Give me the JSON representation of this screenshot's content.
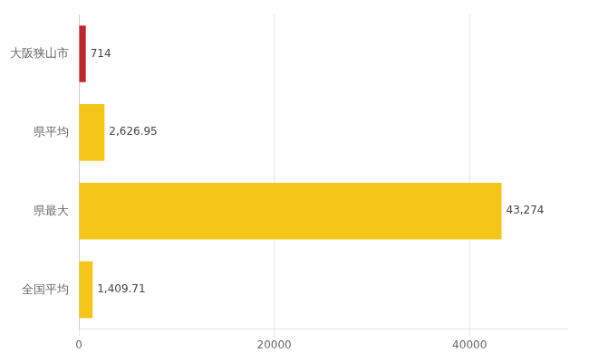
{
  "chart_data": {
    "type": "bar",
    "orientation": "horizontal",
    "categories": [
      "大阪狭山市",
      "県平均",
      "県最大",
      "全国平均"
    ],
    "values": [
      714,
      2626.95,
      43274,
      1409.71
    ],
    "value_labels": [
      "714",
      "2,626.95",
      "43,274",
      "1,409.71"
    ],
    "colors": [
      "#c0272d",
      "#f5c518",
      "#f5c518",
      "#f5c518"
    ],
    "xlim": [
      0,
      50000
    ],
    "xticks": [
      0,
      20000,
      40000
    ],
    "grid": true,
    "data_labels": true
  }
}
